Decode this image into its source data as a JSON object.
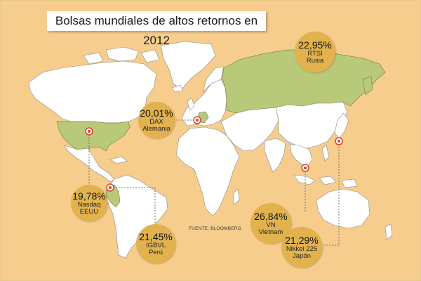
{
  "title": "Bolsas mundiales de altos retornos en 2012",
  "source": "FUENTE: BLOOMBERG",
  "colors": {
    "background": "#f7cd8d",
    "land": "#ffffff",
    "highlight": "#b9c97a",
    "bubble": "#e2b24f",
    "marker": "#d9432b",
    "leader": "#555555"
  },
  "markets": [
    {
      "pct": "22,95%",
      "index": "RTSI",
      "country": "Rusia"
    },
    {
      "pct": "20,01%",
      "index": "DAX",
      "country": "Alemania"
    },
    {
      "pct": "19,78%",
      "index": "Nasdaq",
      "country": "EEUU"
    },
    {
      "pct": "21,45%",
      "index": "IGBVL",
      "country": "Perú"
    },
    {
      "pct": "26,84%",
      "index": "VN",
      "country": "Vietnam"
    },
    {
      "pct": "21,29%",
      "index": "Nikkei 225",
      "country": "Japón"
    }
  ]
}
